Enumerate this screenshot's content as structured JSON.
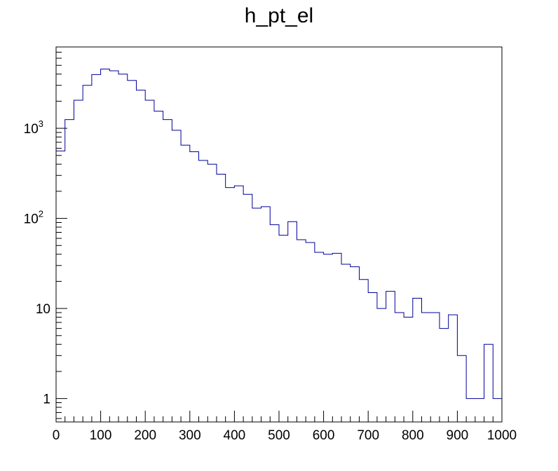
{
  "chart_data": {
    "type": "line",
    "style": "step-histogram",
    "title": "h_pt_el",
    "xlabel": "",
    "ylabel": "",
    "xlim": [
      0,
      1000
    ],
    "ylim": [
      0.55,
      8000
    ],
    "y_scale": "log",
    "grid": false,
    "legend": "none",
    "line_color": "#000099",
    "bin_width": 20,
    "x_ticks": [
      {
        "value": 0,
        "label": "0"
      },
      {
        "value": 100,
        "label": "100"
      },
      {
        "value": 200,
        "label": "200"
      },
      {
        "value": 300,
        "label": "300"
      },
      {
        "value": 400,
        "label": "400"
      },
      {
        "value": 500,
        "label": "500"
      },
      {
        "value": 600,
        "label": "600"
      },
      {
        "value": 700,
        "label": "700"
      },
      {
        "value": 800,
        "label": "800"
      },
      {
        "value": 900,
        "label": "900"
      },
      {
        "value": 1000,
        "label": "1000"
      }
    ],
    "y_ticks": [
      {
        "value": 1,
        "base": "1",
        "exp": ""
      },
      {
        "value": 10,
        "base": "10",
        "exp": ""
      },
      {
        "value": 100,
        "base": "10",
        "exp": "2"
      },
      {
        "value": 1000,
        "base": "10",
        "exp": "3"
      }
    ],
    "x": [
      0,
      20,
      40,
      60,
      80,
      100,
      120,
      140,
      160,
      180,
      200,
      220,
      240,
      260,
      280,
      300,
      320,
      340,
      360,
      380,
      400,
      420,
      440,
      460,
      480,
      500,
      520,
      540,
      560,
      580,
      600,
      620,
      640,
      660,
      680,
      700,
      720,
      740,
      760,
      780,
      800,
      820,
      840,
      860,
      880,
      900,
      920,
      940,
      960,
      980
    ],
    "values": [
      560,
      1250,
      2050,
      3000,
      3950,
      4550,
      4350,
      4000,
      3400,
      2650,
      2050,
      1550,
      1250,
      950,
      650,
      550,
      440,
      400,
      310,
      220,
      230,
      185,
      130,
      135,
      85,
      65,
      92,
      58,
      54,
      42,
      40,
      41,
      31,
      29,
      21,
      15,
      10,
      15.5,
      9,
      8,
      13,
      9,
      9,
      6,
      8.5,
      3,
      1,
      1,
      4,
      1
    ]
  }
}
